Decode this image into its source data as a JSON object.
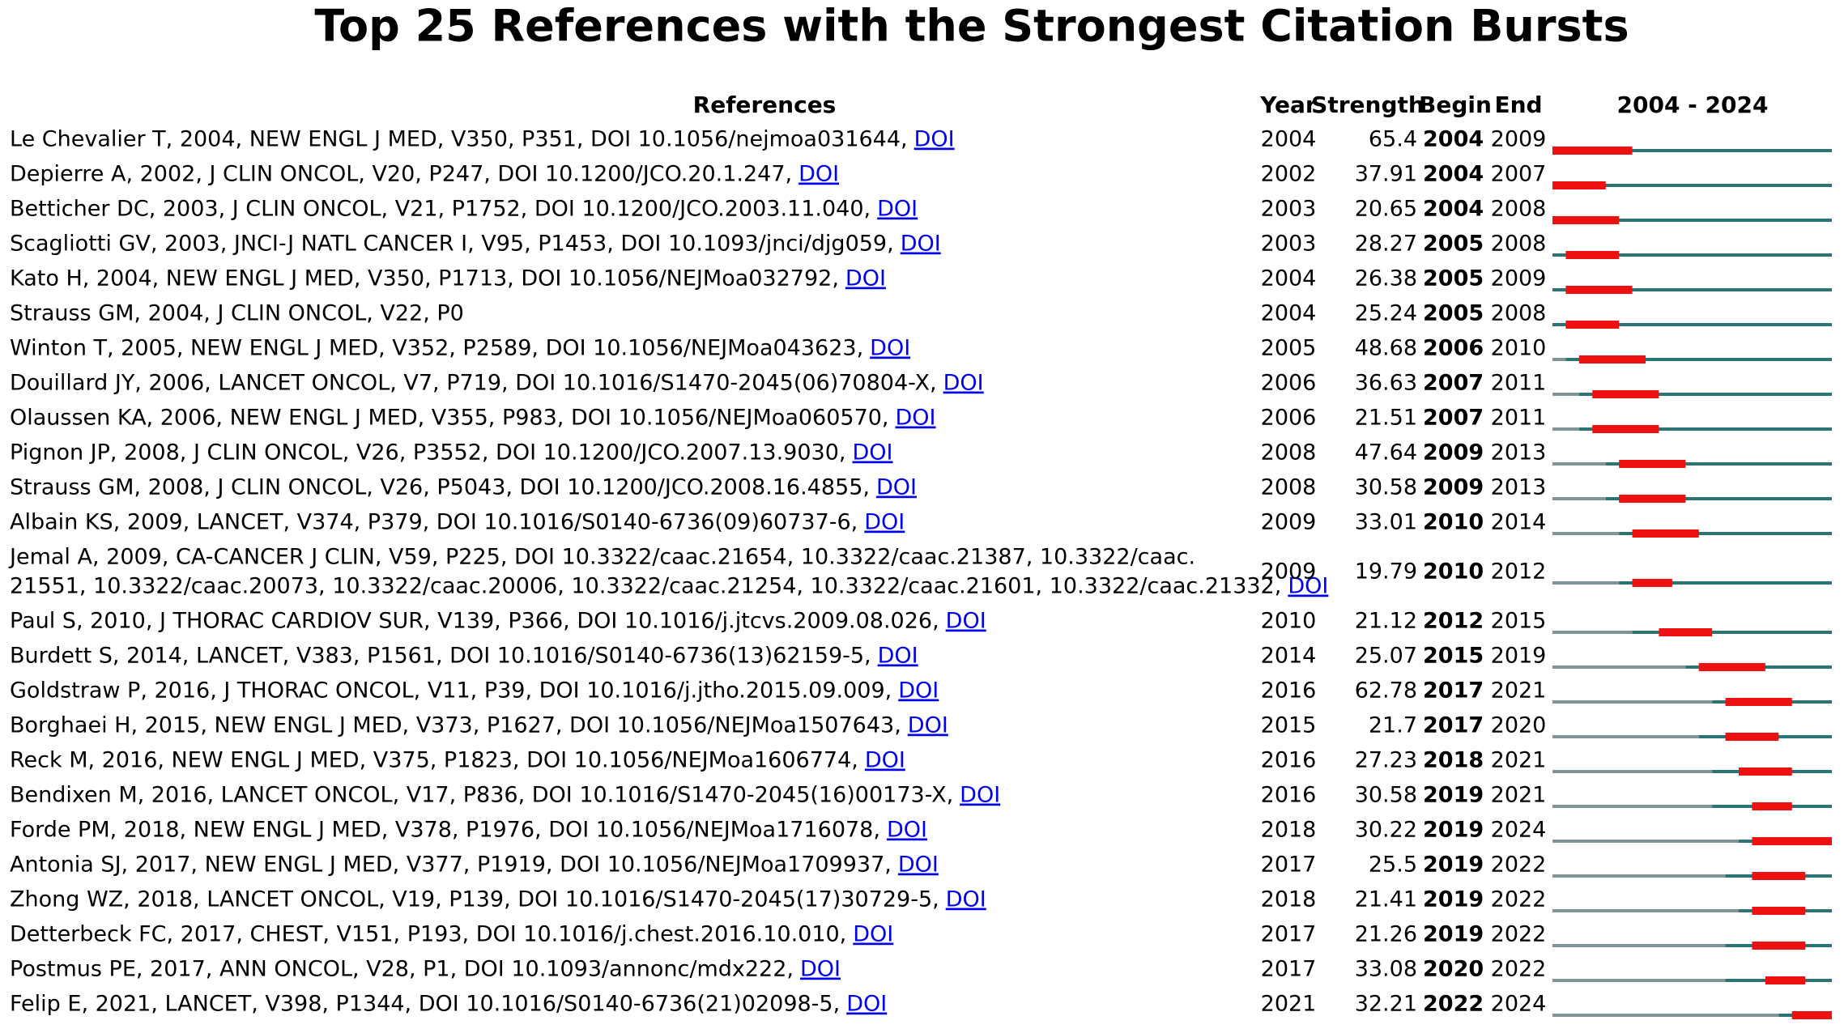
{
  "title": "Top 25 References with the Strongest Citation Bursts",
  "columns": {
    "references": "References",
    "year": "Year",
    "strength": "Strength",
    "begin": "Begin",
    "end": "End",
    "timeline": "2004 - 2024"
  },
  "xlim": [
    2004,
    2024
  ],
  "rows": [
    {
      "reference": "Le Chevalier T, 2004, NEW ENGL J MED, V350, P351, DOI 10.1056/nejmoa031644,",
      "link": "DOI",
      "year": 2004,
      "strength": 65.4,
      "begin": 2004,
      "end": 2009
    },
    {
      "reference": "Depierre A, 2002, J CLIN ONCOL, V20, P247, DOI 10.1200/JCO.20.1.247,",
      "link": "DOI",
      "year": 2002,
      "strength": 37.91,
      "begin": 2004,
      "end": 2007
    },
    {
      "reference": "Betticher DC, 2003, J CLIN ONCOL, V21, P1752, DOI 10.1200/JCO.2003.11.040,",
      "link": "DOI",
      "year": 2003,
      "strength": 20.65,
      "begin": 2004,
      "end": 2008
    },
    {
      "reference": "Scagliotti GV, 2003, JNCI-J NATL CANCER I, V95, P1453, DOI 10.1093/jnci/djg059,",
      "link": "DOI",
      "year": 2003,
      "strength": 28.27,
      "begin": 2005,
      "end": 2008
    },
    {
      "reference": "Kato H, 2004, NEW ENGL J MED, V350, P1713, DOI 10.1056/NEJMoa032792,",
      "link": "DOI",
      "year": 2004,
      "strength": 26.38,
      "begin": 2005,
      "end": 2009
    },
    {
      "reference": "Strauss GM, 2004, J CLIN ONCOL, V22, P0",
      "year": 2004,
      "strength": 25.24,
      "begin": 2005,
      "end": 2008
    },
    {
      "reference": "Winton T, 2005, NEW ENGL J MED, V352, P2589, DOI 10.1056/NEJMoa043623,",
      "link": "DOI",
      "year": 2005,
      "strength": 48.68,
      "begin": 2006,
      "end": 2010
    },
    {
      "reference": "Douillard JY, 2006, LANCET ONCOL, V7, P719, DOI 10.1016/S1470-2045(06)70804-X,",
      "link": "DOI",
      "year": 2006,
      "strength": 36.63,
      "begin": 2007,
      "end": 2011
    },
    {
      "reference": "Olaussen KA, 2006, NEW ENGL J MED, V355, P983, DOI 10.1056/NEJMoa060570,",
      "link": "DOI",
      "year": 2006,
      "strength": 21.51,
      "begin": 2007,
      "end": 2011
    },
    {
      "reference": "Pignon JP, 2008, J CLIN ONCOL, V26, P3552, DOI 10.1200/JCO.2007.13.9030,",
      "link": "DOI",
      "year": 2008,
      "strength": 47.64,
      "begin": 2009,
      "end": 2013
    },
    {
      "reference": "Strauss GM, 2008, J CLIN ONCOL, V26, P5043, DOI 10.1200/JCO.2008.16.4855,",
      "link": "DOI",
      "year": 2008,
      "strength": 30.58,
      "begin": 2009,
      "end": 2013
    },
    {
      "reference": "Albain KS, 2009, LANCET, V374, P379, DOI 10.1016/S0140-6736(09)60737-6,",
      "link": "DOI",
      "year": 2009,
      "strength": 33.01,
      "begin": 2010,
      "end": 2014
    },
    {
      "reference": [
        "Jemal A, 2009, CA-CANCER J CLIN, V59, P225, DOI 10.3322/caac.21654, 10.3322/caac.21387, 10.3322/caac.",
        "21551, 10.3322/caac.20073, 10.3322/caac.20006, 10.3322/caac.21254, 10.3322/caac.21601, 10.3322/caac.21332,"
      ],
      "link": "DOI",
      "year": 2009,
      "strength": 19.79,
      "begin": 2010,
      "end": 2012
    },
    {
      "reference": "Paul S, 2010, J THORAC CARDIOV SUR, V139, P366, DOI 10.1016/j.jtcvs.2009.08.026,",
      "link": "DOI",
      "year": 2010,
      "strength": 21.12,
      "begin": 2012,
      "end": 2015
    },
    {
      "reference": "Burdett S, 2014, LANCET, V383, P1561, DOI 10.1016/S0140-6736(13)62159-5,",
      "link": "DOI",
      "year": 2014,
      "strength": 25.07,
      "begin": 2015,
      "end": 2019
    },
    {
      "reference": "Goldstraw P, 2016, J THORAC ONCOL, V11, P39, DOI 10.1016/j.jtho.2015.09.009,",
      "link": "DOI",
      "year": 2016,
      "strength": 62.78,
      "begin": 2017,
      "end": 2021
    },
    {
      "reference": "Borghaei H, 2015, NEW ENGL J MED, V373, P1627, DOI 10.1056/NEJMoa1507643,",
      "link": "DOI",
      "year": 2015,
      "strength": 21.7,
      "begin": 2017,
      "end": 2020
    },
    {
      "reference": "Reck M, 2016, NEW ENGL J MED, V375, P1823, DOI 10.1056/NEJMoa1606774,",
      "link": "DOI",
      "year": 2016,
      "strength": 27.23,
      "begin": 2018,
      "end": 2021
    },
    {
      "reference": "Bendixen M, 2016, LANCET ONCOL, V17, P836, DOI 10.1016/S1470-2045(16)00173-X,",
      "link": "DOI",
      "year": 2016,
      "strength": 30.58,
      "begin": 2019,
      "end": 2021
    },
    {
      "reference": "Forde PM, 2018, NEW ENGL J MED, V378, P1976, DOI 10.1056/NEJMoa1716078,",
      "link": "DOI",
      "year": 2018,
      "strength": 30.22,
      "begin": 2019,
      "end": 2024
    },
    {
      "reference": "Antonia SJ, 2017, NEW ENGL J MED, V377, P1919, DOI 10.1056/NEJMoa1709937,",
      "link": "DOI",
      "year": 2017,
      "strength": 25.5,
      "begin": 2019,
      "end": 2022
    },
    {
      "reference": "Zhong WZ, 2018, LANCET ONCOL, V19, P139, DOI 10.1016/S1470-2045(17)30729-5,",
      "link": "DOI",
      "year": 2018,
      "strength": 21.41,
      "begin": 2019,
      "end": 2022
    },
    {
      "reference": "Detterbeck FC, 2017, CHEST, V151, P193, DOI 10.1016/j.chest.2016.10.010,",
      "link": "DOI",
      "year": 2017,
      "strength": 21.26,
      "begin": 2019,
      "end": 2022
    },
    {
      "reference": "Postmus PE, 2017, ANN ONCOL, V28, P1, DOI 10.1093/annonc/mdx222,",
      "link": "DOI",
      "year": 2017,
      "strength": 33.08,
      "begin": 2020,
      "end": 2022
    },
    {
      "reference": "Felip E, 2021, LANCET, V398, P1344, DOI 10.1016/S0140-6736(21)02098-5,",
      "link": "DOI",
      "year": 2021,
      "strength": 32.21,
      "begin": 2022,
      "end": 2024
    }
  ]
}
